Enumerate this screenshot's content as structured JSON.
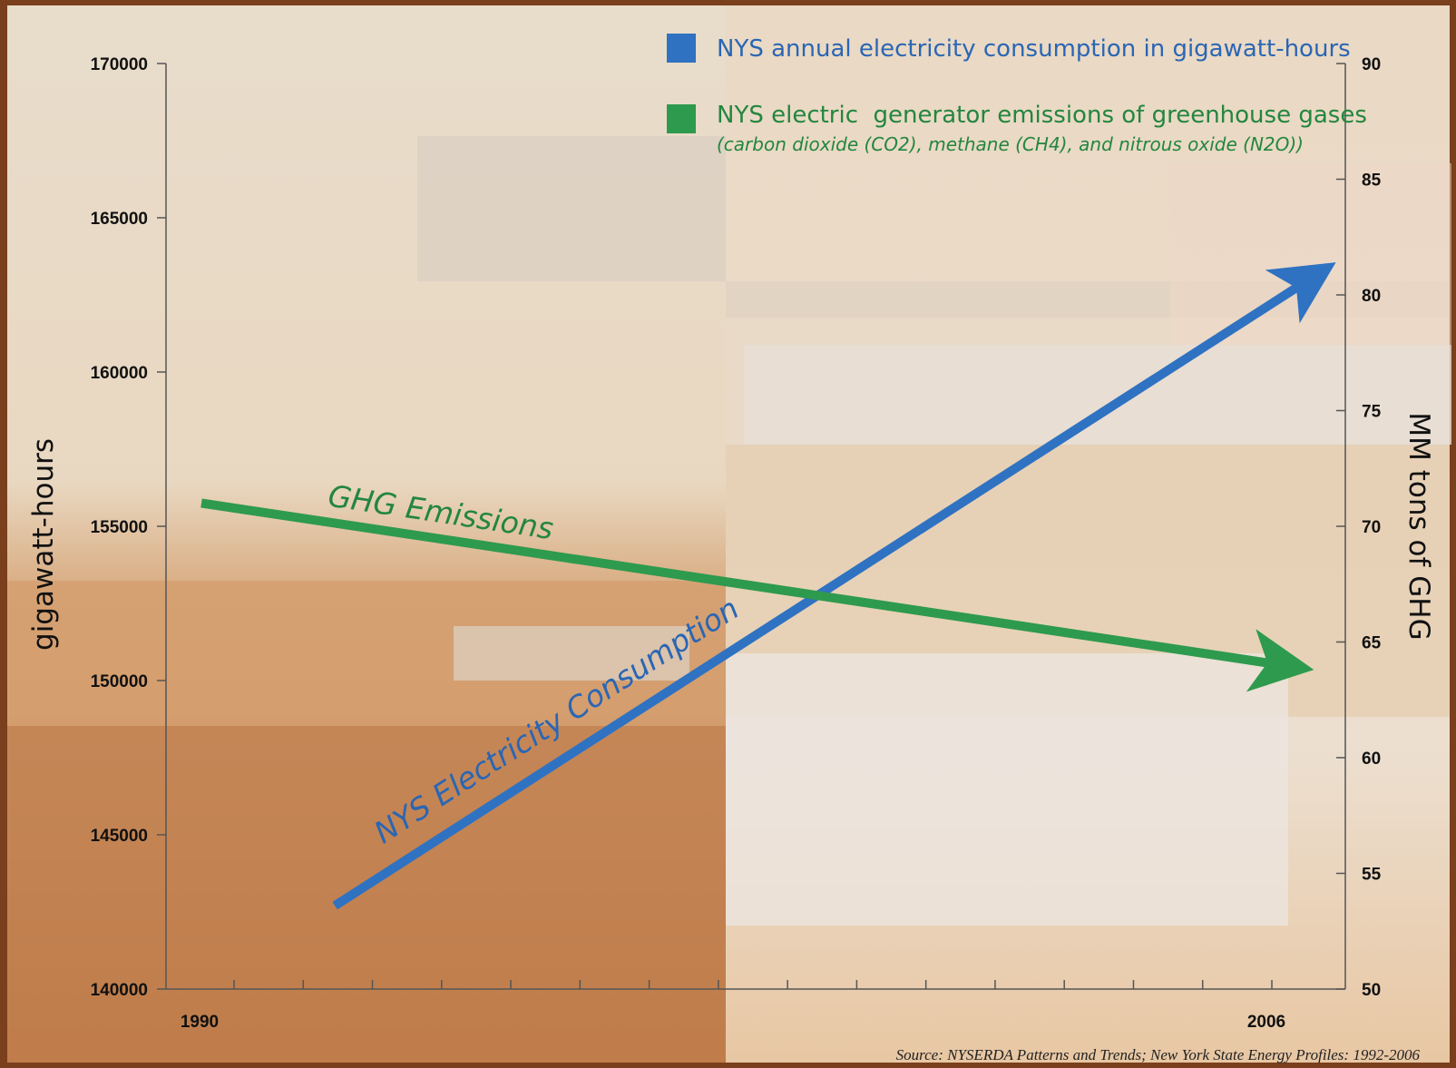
{
  "chart_data": {
    "type": "line",
    "title": "",
    "legend": [
      {
        "label": "NYS annual electricity consumption in gigawatt-hours",
        "color": "#2f72c2"
      },
      {
        "label": "NYS electric  generator emissions of greenhouse gases",
        "sublabel": "(carbon dioxide (CO2), methane (CH4), and nitrous oxide (N2O))",
        "color": "#2e9a4e"
      }
    ],
    "legend_position": "top-right",
    "x": {
      "start_label": "1990",
      "end_label": "2006",
      "range": [
        1990,
        2006.3
      ],
      "minor_ticks": 17
    },
    "y_left": {
      "label": "gigawatt-hours",
      "range": [
        140000,
        170000
      ],
      "ticks": [
        "170000",
        "165000",
        "160000",
        "155000",
        "150000",
        "145000",
        "140000"
      ]
    },
    "y_right": {
      "label": "MM tons of GHG",
      "range": [
        50,
        90
      ],
      "ticks": [
        "90",
        "85",
        "80",
        "75",
        "70",
        "65",
        "60",
        "55",
        "50"
      ]
    },
    "series": [
      {
        "name": "NYS Electricity Consumption",
        "axis": "left",
        "color": "#2f72c2",
        "x": [
          1992,
          2006.6
        ],
        "y": [
          142700,
          163000
        ]
      },
      {
        "name": "GHG Emissions",
        "axis": "right",
        "color": "#2e9a4e",
        "x": [
          1990,
          2006.2
        ],
        "y": [
          71.0,
          64.0
        ]
      }
    ],
    "source": "Source: NYSERDA Patterns and Trends; New York State Energy Profiles: 1992-2006",
    "grid": false
  }
}
